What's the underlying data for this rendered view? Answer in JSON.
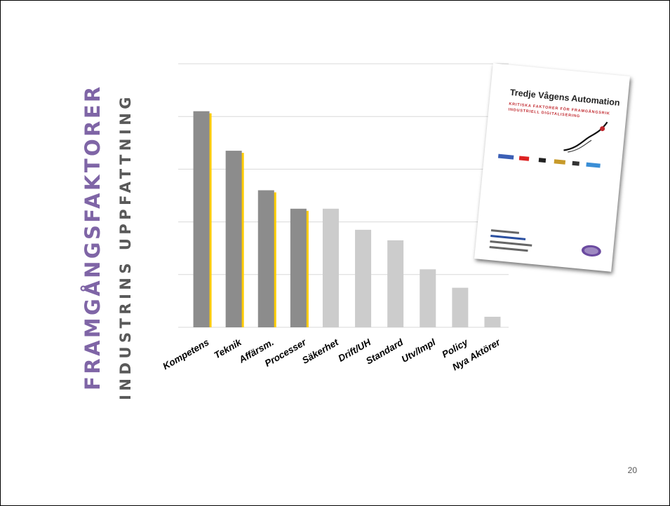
{
  "slide": {
    "title": "FRAMGÅNGSFAKTORER",
    "subtitle": "INDUSTRINS UPPFATTNING",
    "page_number": "20"
  },
  "report": {
    "title": "Tredje Vågens Automation",
    "subtitle": "KRITISKA FAKTORER FÖR FRAMGÅNGSRIK INDUSTRIELL DIGITALISERING"
  },
  "colors": {
    "title": "#7f65a6",
    "subtitle": "#595959",
    "highlight_bar": "#8c8c8c",
    "accent": "#ffcc00",
    "other_bar": "#cccccc",
    "grid": "#d9d9d9"
  },
  "chart_data": {
    "type": "bar",
    "categories": [
      "Kompetens",
      "Teknik",
      "Affärsm.",
      "Processer",
      "Säkerhet",
      "Drift/UH",
      "Standard",
      "Utv/Impl",
      "Policy",
      "Nya Aktörer"
    ],
    "values": [
      82,
      67,
      52,
      45,
      45,
      37,
      33,
      22,
      15,
      4
    ],
    "highlighted_count": 4,
    "ylim": [
      0,
      100
    ],
    "gridlines": true,
    "legend": "none",
    "title": "",
    "xlabel": "",
    "ylabel": ""
  }
}
